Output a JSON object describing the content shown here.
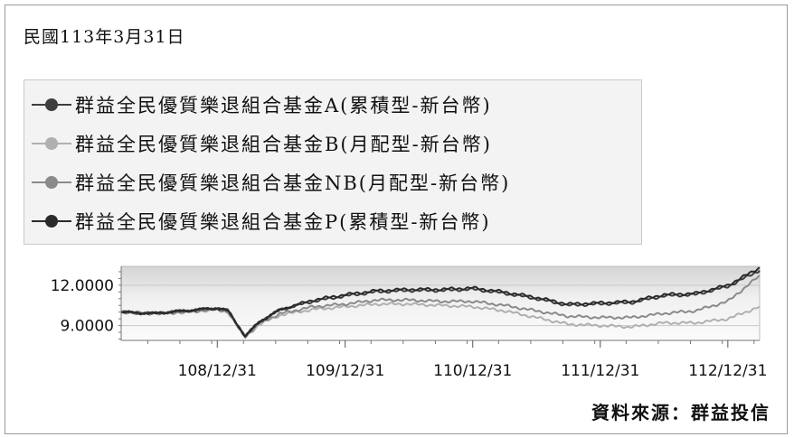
{
  "date_label": "民國113年3月31日",
  "source_label": "資料來源：群益投信",
  "chart_data": {
    "type": "line",
    "title": "",
    "xlabel": "",
    "ylabel": "",
    "ylim": [
      7.9,
      13.4
    ],
    "yticks": [
      {
        "value": 12.0,
        "label": "12.0000"
      },
      {
        "value": 9.0,
        "label": "9.0000"
      }
    ],
    "xlim": [
      "2019-03-31",
      "2024-03-31"
    ],
    "xticks": [
      {
        "date": "2019-12-31",
        "label": "108/12/31"
      },
      {
        "date": "2020-12-31",
        "label": "109/12/31"
      },
      {
        "date": "2021-12-31",
        "label": "110/12/31"
      },
      {
        "date": "2022-12-31",
        "label": "111/12/31"
      },
      {
        "date": "2023-12-31",
        "label": "112/12/31"
      }
    ],
    "grid": true,
    "legend_position": "top",
    "series": [
      {
        "name": "群益全民優質樂退組合基金A(累積型-新台幣)",
        "color": "#3e3e3e",
        "x": [
          "2019-03-31",
          "2019-06-30",
          "2019-09-30",
          "2019-12-31",
          "2020-01-31",
          "2020-03-20",
          "2020-04-30",
          "2020-06-30",
          "2020-09-30",
          "2020-12-31",
          "2021-03-31",
          "2021-06-30",
          "2021-09-30",
          "2021-12-31",
          "2022-03-31",
          "2022-06-30",
          "2022-09-30",
          "2022-12-31",
          "2023-03-31",
          "2023-06-30",
          "2023-09-30",
          "2023-12-31",
          "2024-03-31"
        ],
        "values": [
          10.0,
          9.9,
          10.1,
          10.3,
          10.1,
          8.2,
          9.3,
          10.2,
          10.8,
          11.2,
          11.5,
          11.6,
          11.6,
          11.7,
          11.4,
          11.0,
          10.5,
          10.6,
          10.7,
          11.2,
          11.3,
          11.9,
          13.1
        ]
      },
      {
        "name": "群益全民優質樂退組合基金B(月配型-新台幣)",
        "color": "#b0b0b0",
        "x": [
          "2019-03-31",
          "2019-06-30",
          "2019-09-30",
          "2019-12-31",
          "2020-01-31",
          "2020-03-20",
          "2020-04-30",
          "2020-06-30",
          "2020-09-30",
          "2020-12-31",
          "2021-03-31",
          "2021-06-30",
          "2021-09-30",
          "2021-12-31",
          "2022-03-31",
          "2022-06-30",
          "2022-09-30",
          "2022-12-31",
          "2023-03-31",
          "2023-06-30",
          "2023-09-30",
          "2023-12-31",
          "2024-03-31"
        ],
        "values": [
          10.0,
          9.9,
          10.0,
          10.2,
          10.0,
          8.1,
          9.1,
          9.8,
          10.2,
          10.4,
          10.6,
          10.6,
          10.5,
          10.4,
          10.1,
          9.6,
          9.1,
          9.0,
          8.9,
          9.2,
          9.2,
          9.5,
          10.4
        ]
      },
      {
        "name": "群益全民優質樂退組合基金NB(月配型-新台幣)",
        "color": "#8a8a8a",
        "x": [
          "2019-03-31",
          "2019-06-30",
          "2019-09-30",
          "2019-12-31",
          "2020-01-31",
          "2020-03-20",
          "2020-04-30",
          "2020-06-30",
          "2020-09-30",
          "2020-12-31",
          "2021-03-31",
          "2021-06-30",
          "2021-09-30",
          "2021-12-31",
          "2022-03-31",
          "2022-06-30",
          "2022-09-30",
          "2022-12-31",
          "2023-03-31",
          "2023-06-30",
          "2023-09-30",
          "2023-12-31",
          "2024-03-31"
        ],
        "values": [
          10.0,
          9.9,
          10.0,
          10.2,
          10.0,
          8.2,
          9.2,
          9.9,
          10.4,
          10.6,
          10.9,
          10.9,
          10.8,
          10.8,
          10.5,
          10.1,
          9.7,
          9.6,
          9.6,
          9.9,
          10.1,
          10.8,
          12.7
        ]
      },
      {
        "name": "群益全民優質樂退組合基金P(累積型-新台幣)",
        "color": "#2a2a2a",
        "x": [
          "2019-03-31",
          "2019-06-30",
          "2019-09-30",
          "2019-12-31",
          "2020-01-31",
          "2020-03-20",
          "2020-04-30",
          "2020-06-30",
          "2020-09-30",
          "2020-12-31",
          "2021-03-31",
          "2021-06-30",
          "2021-09-30",
          "2021-12-31",
          "2022-03-31",
          "2022-06-30",
          "2022-09-30",
          "2022-12-31",
          "2023-03-31",
          "2023-06-30",
          "2023-09-30",
          "2023-12-31",
          "2024-03-31"
        ],
        "values": [
          10.0,
          9.9,
          10.1,
          10.3,
          10.1,
          8.2,
          9.3,
          10.2,
          10.9,
          11.3,
          11.6,
          11.7,
          11.7,
          11.8,
          11.5,
          11.1,
          10.6,
          10.7,
          10.8,
          11.3,
          11.4,
          12.0,
          13.3
        ]
      }
    ]
  }
}
